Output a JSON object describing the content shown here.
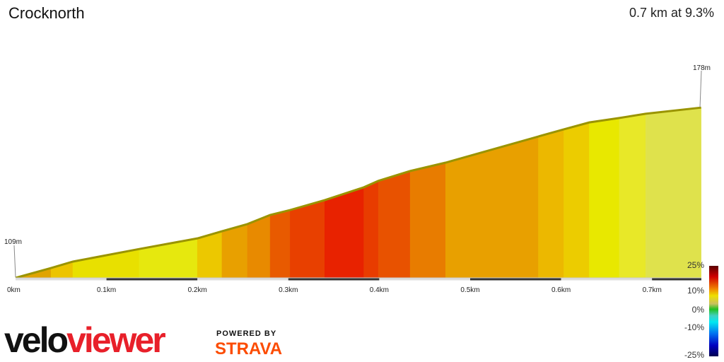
{
  "header": {
    "title": "Crocknorth",
    "summary": "0.7 km at 9.3%"
  },
  "branding": {
    "logo_part1": "velo",
    "logo_part2": "viewer",
    "powered_by": "POWERED BY",
    "strava": "STRAVA"
  },
  "chart_data": {
    "type": "area",
    "xlabel": "",
    "ylabel": "",
    "x_ticks": [
      "0km",
      "0.1km",
      "0.2km",
      "0.3km",
      "0.4km",
      "0.5km",
      "0.6km",
      "0.7km"
    ],
    "start_label": "109m",
    "end_label": "178m",
    "distance_km": [
      0,
      0.039,
      0.063,
      0.136,
      0.2,
      0.227,
      0.255,
      0.28,
      0.302,
      0.34,
      0.383,
      0.399,
      0.434,
      0.473,
      0.575,
      0.603,
      0.631,
      0.664,
      0.693,
      0.754
    ],
    "elevation_m": [
      109,
      113,
      115.6,
      120.7,
      125,
      127.9,
      130.8,
      134.5,
      136.5,
      140.5,
      145.7,
      148.3,
      152.3,
      155.7,
      166.3,
      169.2,
      172,
      173.8,
      175.5,
      178
    ],
    "segment_colors": [
      "#e0a400",
      "#ecc400",
      "#e8e000",
      "#e6e80e",
      "#ecc800",
      "#e8a000",
      "#e88a00",
      "#e85a00",
      "#e84000",
      "#e82200",
      "#e83c00",
      "#e85200",
      "#e87c00",
      "#e8a000",
      "#ecb800",
      "#eccc00",
      "#e8e800",
      "#e8e828",
      "#dfe24c"
    ],
    "legend": {
      "labels": [
        "25%",
        "10%",
        "0%",
        "-10%",
        "-25%"
      ],
      "range": [
        -25,
        25
      ]
    }
  }
}
